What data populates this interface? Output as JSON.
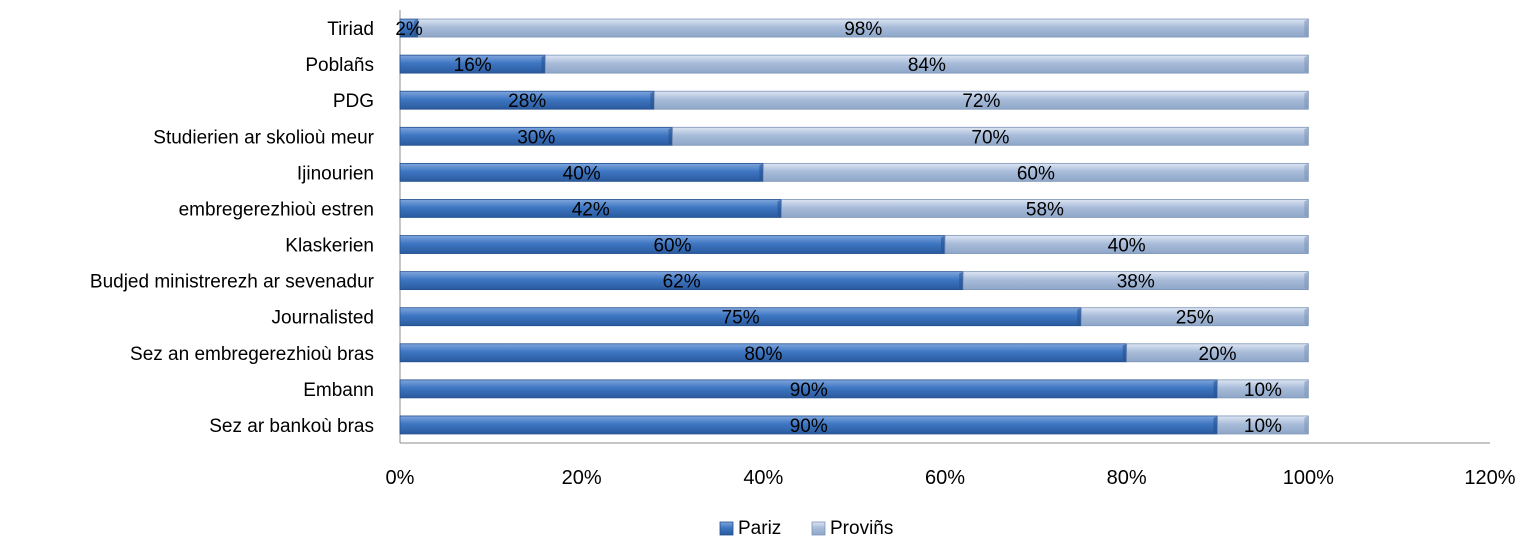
{
  "chart_data": {
    "type": "bar",
    "orientation": "horizontal",
    "stacked": true,
    "categories": [
      "Tiriad",
      "Poblañs",
      "PDG",
      "Studierien ar skolioù meur",
      "Ijinourien",
      "embregerezhioù estren",
      "Klaskerien",
      "Budjed ministrerezh ar sevenadur",
      "Journalisted",
      "Sez an embregerezhioù bras",
      "Embann",
      "Sez ar bankoù bras"
    ],
    "series": [
      {
        "name": "Pariz",
        "values": [
          2,
          16,
          28,
          30,
          40,
          42,
          60,
          62,
          75,
          80,
          90,
          90
        ],
        "labels": [
          "2%",
          "16%",
          "28%",
          "30%",
          "40%",
          "42%",
          "60%",
          "62%",
          "75%",
          "80%",
          "90%",
          "90%"
        ],
        "color": "#3e76c2"
      },
      {
        "name": "Proviñs",
        "values": [
          98,
          84,
          72,
          70,
          60,
          58,
          40,
          38,
          25,
          20,
          10,
          10
        ],
        "labels": [
          "98%",
          "84%",
          "72%",
          "70%",
          "60%",
          "58%",
          "40%",
          "38%",
          "25%",
          "20%",
          "10%",
          "10%"
        ],
        "color": "#a8bcd9"
      }
    ],
    "xlim": [
      0,
      120
    ],
    "xticks": [
      0,
      20,
      40,
      60,
      80,
      100,
      120
    ],
    "xtick_labels": [
      "0%",
      "20%",
      "40%",
      "60%",
      "80%",
      "100%",
      "120%"
    ],
    "legend_position": "bottom",
    "grid": false
  }
}
